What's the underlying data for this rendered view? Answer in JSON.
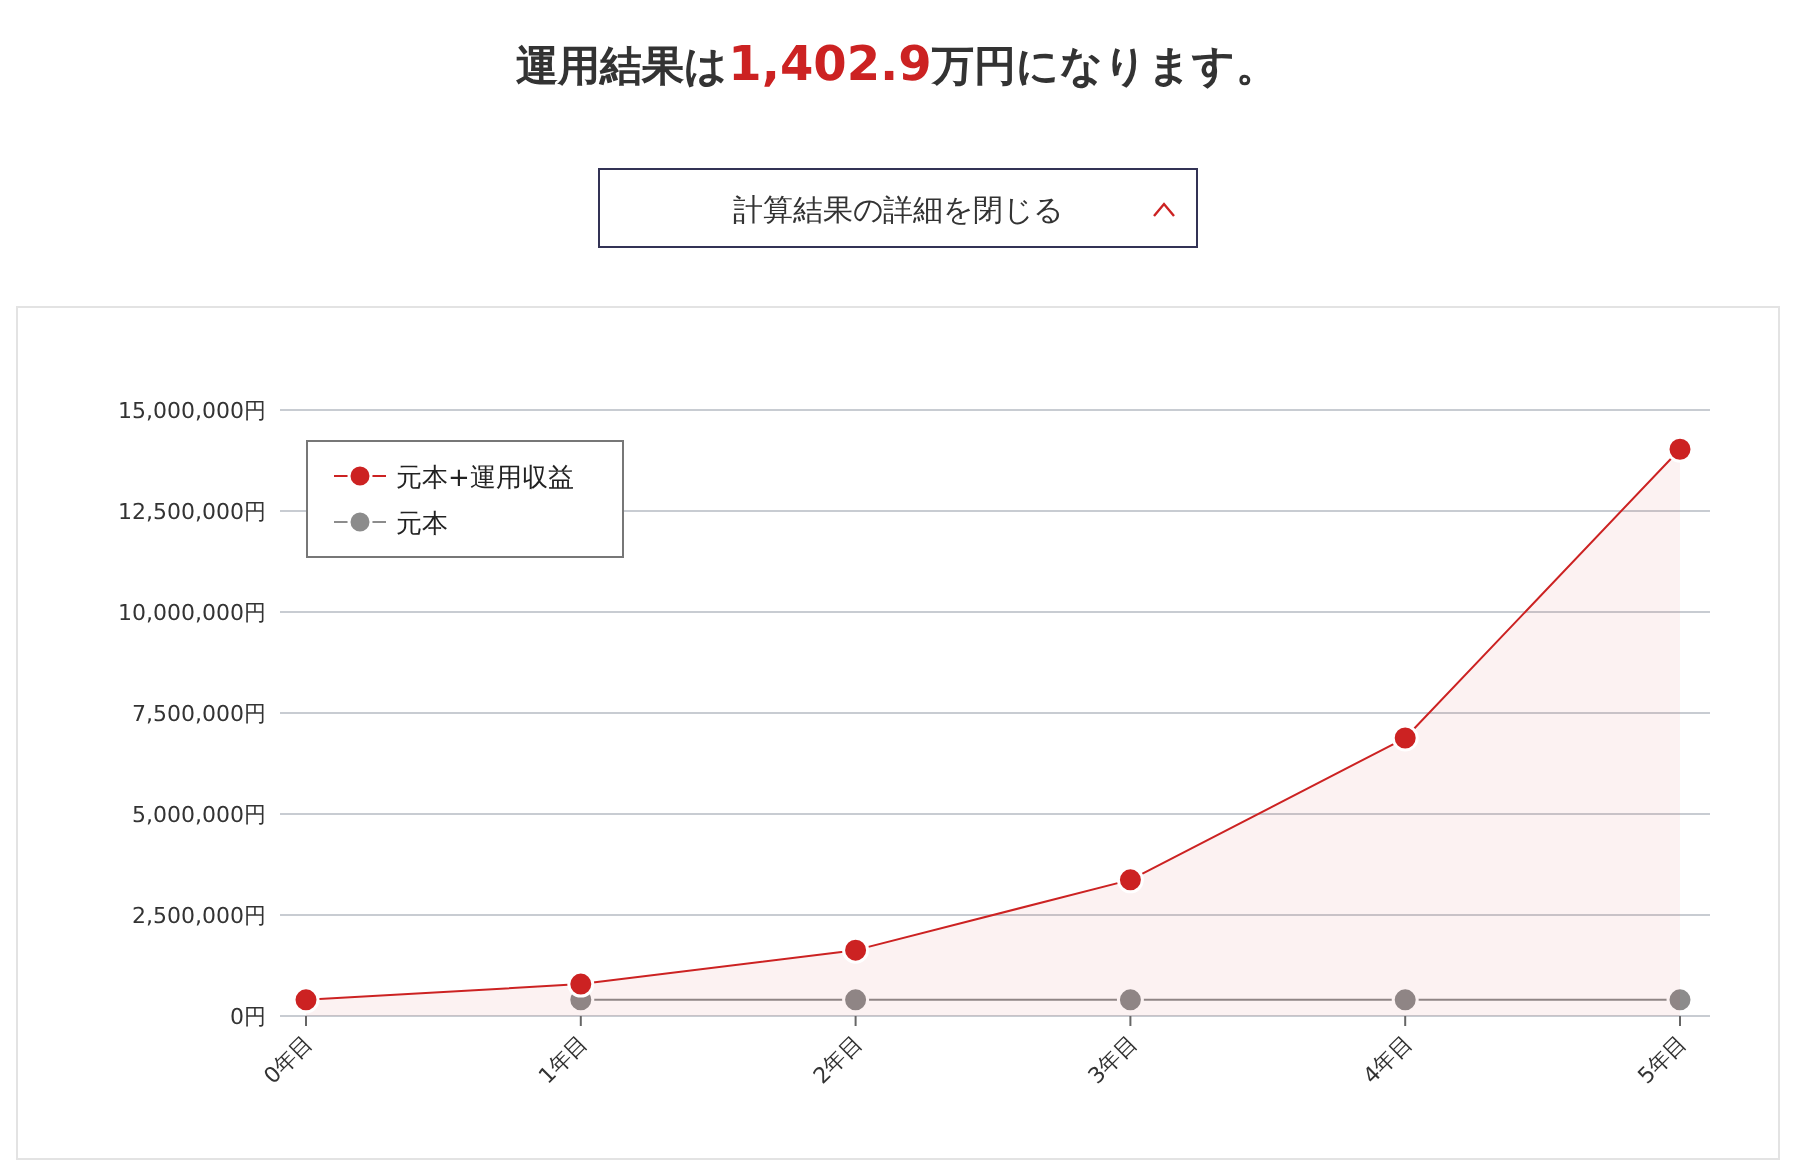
{
  "chart_data": {
    "type": "line",
    "title": "運用結果は1,402.9万円になります。",
    "annotations": [
      "計算結果の詳細を閉じる"
    ],
    "categories": [
      "0年目",
      "1年目",
      "2年目",
      "3年目",
      "4年目",
      "5年目"
    ],
    "series": [
      {
        "name": "元本+運用収益",
        "type": "area",
        "color": "#cc2222",
        "values": [
          400000,
          790000,
          1630000,
          3370000,
          6880000,
          14029000
        ]
      },
      {
        "name": "元本",
        "type": "line",
        "color": "#8c8c8c",
        "values": [
          null,
          400000,
          400000,
          400000,
          400000,
          400000
        ]
      }
    ],
    "ylim": [
      0,
      15000000
    ],
    "yticks": [
      {
        "value": 0,
        "label": "0円"
      },
      {
        "value": 2500000,
        "label": "2,500,000円"
      },
      {
        "value": 5000000,
        "label": "5,000,000円"
      },
      {
        "value": 7500000,
        "label": "7,500,000円"
      },
      {
        "value": 10000000,
        "label": "10,000,000円"
      },
      {
        "value": 12500000,
        "label": "12,500,000円"
      },
      {
        "value": 15000000,
        "label": "15,000,000円"
      }
    ],
    "grid": "y",
    "legend": "top left",
    "marker": "circle",
    "line_style": "solid"
  }
}
